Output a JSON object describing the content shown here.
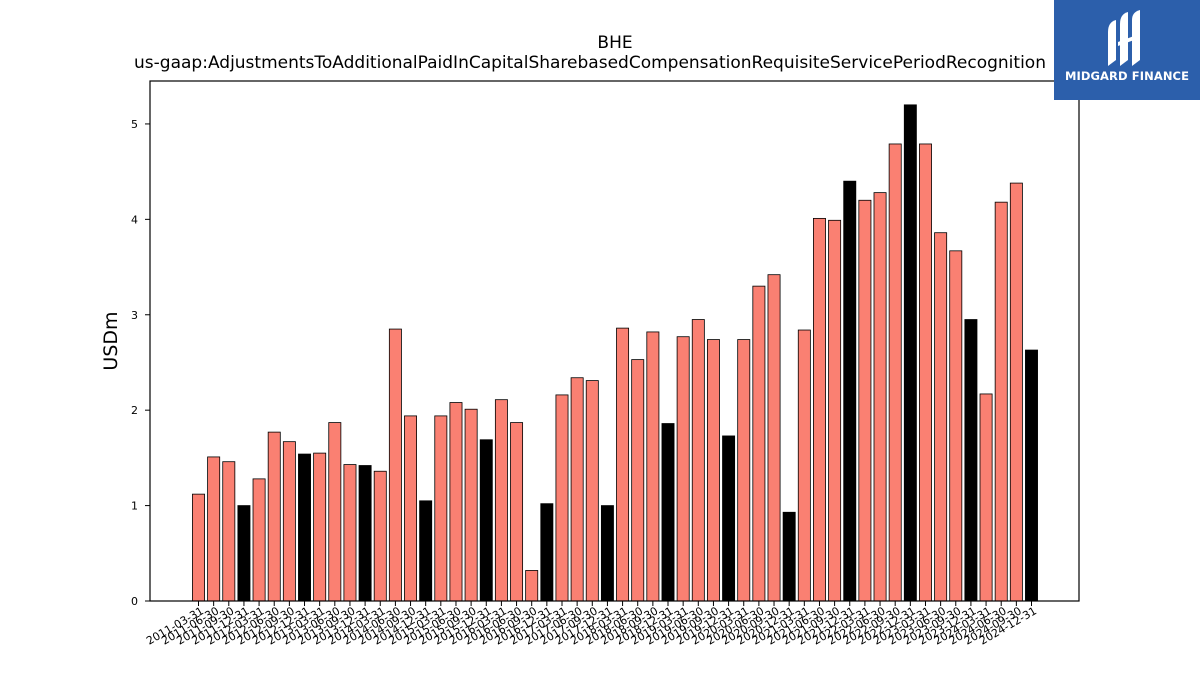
{
  "logo": {
    "text": "MIDGARD FINANCE",
    "colors": {
      "background": "#2c5fab",
      "foreground": "#ffffff"
    }
  },
  "colors": {
    "bar_default": "#fa8072",
    "bar_highlight": "#000000",
    "bar_edge": "#000000",
    "axis": "#000000"
  },
  "chart_data": {
    "type": "bar",
    "title": "BHE",
    "subtitle": "us-gaap:AdjustmentsToAdditionalPaidInCapitalSharebasedCompensationRequisiteServicePeriodRecognition",
    "xlabel": "",
    "ylabel": "USDm",
    "ylim": [
      0,
      5.45
    ],
    "yticks": [
      0,
      1,
      2,
      3,
      4,
      5
    ],
    "grid": false,
    "legend": "none",
    "categories": [
      "2011-03-31",
      "2011-06-30",
      "2011-09-30",
      "2011-12-31",
      "2012-03-31",
      "2012-06-30",
      "2012-09-30",
      "2012-12-31",
      "2013-03-31",
      "2013-06-30",
      "2013-09-30",
      "2013-12-31",
      "2014-03-31",
      "2014-06-30",
      "2014-09-30",
      "2014-12-31",
      "2015-03-31",
      "2015-06-30",
      "2015-09-30",
      "2015-12-31",
      "2016-03-31",
      "2016-06-30",
      "2016-09-30",
      "2016-12-31",
      "2017-03-31",
      "2017-06-30",
      "2017-09-30",
      "2017-12-31",
      "2018-03-31",
      "2018-06-30",
      "2018-09-30",
      "2018-12-31",
      "2019-03-31",
      "2019-06-30",
      "2019-09-30",
      "2019-12-31",
      "2020-03-31",
      "2020-06-30",
      "2020-09-30",
      "2020-12-31",
      "2021-03-31",
      "2021-06-30",
      "2021-09-30",
      "2021-12-31",
      "2022-03-31",
      "2022-06-30",
      "2022-09-30",
      "2022-12-31",
      "2023-03-31",
      "2023-06-30",
      "2023-09-30",
      "2023-12-31",
      "2024-03-31",
      "2024-06-30",
      "2024-09-30",
      "2024-12-31"
    ],
    "values": [
      1.12,
      1.51,
      1.46,
      1.0,
      1.28,
      1.77,
      1.67,
      1.54,
      1.55,
      1.87,
      1.43,
      1.42,
      1.36,
      2.85,
      1.94,
      1.05,
      1.94,
      2.08,
      2.01,
      1.69,
      2.11,
      1.87,
      0.32,
      1.02,
      2.16,
      2.34,
      2.31,
      1.0,
      2.86,
      2.53,
      2.82,
      1.86,
      2.77,
      2.95,
      2.74,
      1.73,
      2.74,
      3.3,
      3.42,
      0.93,
      2.84,
      4.01,
      3.99,
      4.4,
      4.2,
      4.28,
      4.79,
      5.2,
      4.79,
      3.86,
      3.67,
      2.95,
      2.17,
      4.18,
      4.38,
      2.63
    ],
    "highlight": [
      false,
      false,
      false,
      true,
      false,
      false,
      false,
      true,
      false,
      false,
      false,
      true,
      false,
      false,
      false,
      true,
      false,
      false,
      false,
      true,
      false,
      false,
      false,
      true,
      false,
      false,
      false,
      true,
      false,
      false,
      false,
      true,
      false,
      false,
      false,
      true,
      false,
      false,
      false,
      true,
      false,
      false,
      false,
      true,
      false,
      false,
      false,
      true,
      false,
      false,
      false,
      true,
      false,
      false,
      false,
      true
    ]
  }
}
